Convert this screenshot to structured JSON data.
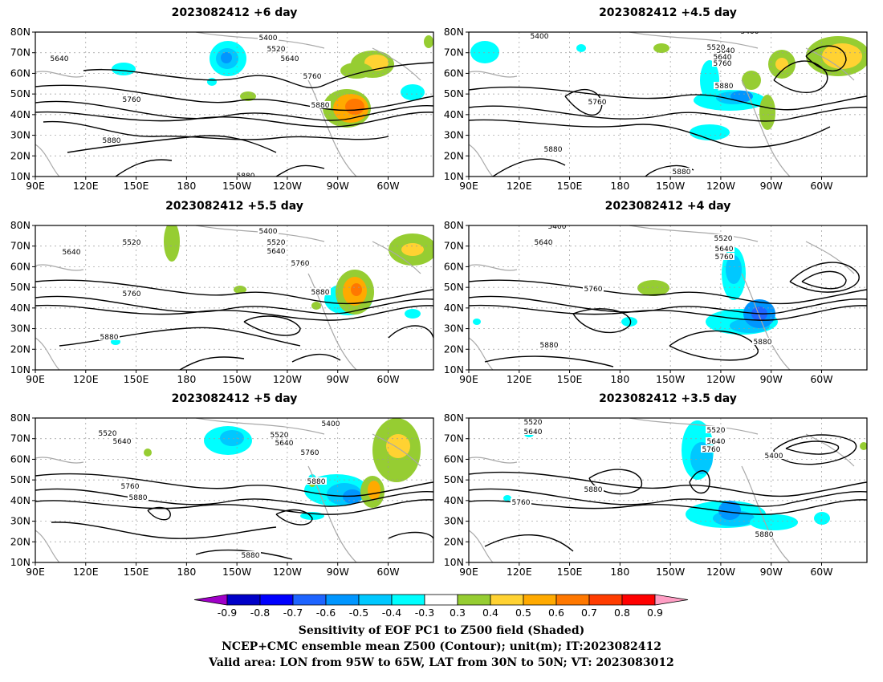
{
  "panels": [
    {
      "title": "2023082412  +6 day",
      "contour_labels": [
        "5400",
        "5520",
        "5640",
        "5640",
        "5760",
        "5760",
        "5880",
        "5880",
        "5880"
      ]
    },
    {
      "title": "2023082412  +4.5 day",
      "contour_labels": [
        "5400",
        "5640",
        "5520",
        "5640",
        "5760",
        "5760",
        "5880",
        "5880",
        "5880",
        "5400"
      ]
    },
    {
      "title": "2023082412  +5.5 day",
      "contour_labels": [
        "5400",
        "5520",
        "5520",
        "5640",
        "5640",
        "5760",
        "5760",
        "5880",
        "5880"
      ]
    },
    {
      "title": "2023082412  +4 day",
      "contour_labels": [
        "5400",
        "5640",
        "5520",
        "5640",
        "5760",
        "5760",
        "5880",
        "5880"
      ]
    },
    {
      "title": "2023082412  +5 day",
      "contour_labels": [
        "5400",
        "5520",
        "5520",
        "5640",
        "5640",
        "5760",
        "5760",
        "5880",
        "5880",
        "5880"
      ]
    },
    {
      "title": "2023082412  +3.5 day",
      "contour_labels": [
        "5520",
        "5640",
        "5520",
        "5640",
        "5760",
        "5880",
        "5760",
        "5400",
        "5880"
      ]
    }
  ],
  "map": {
    "x_ticks": [
      "90E",
      "120E",
      "150E",
      "180",
      "150W",
      "120W",
      "90W",
      "60W"
    ],
    "y_ticks": [
      "80N",
      "70N",
      "60N",
      "50N",
      "40N",
      "30N",
      "20N",
      "10N"
    ]
  },
  "colorbar": {
    "labels": [
      "-0.9",
      "-0.8",
      "-0.7",
      "-0.6",
      "-0.5",
      "-0.4",
      "-0.3",
      "0.3",
      "0.4",
      "0.5",
      "0.6",
      "0.7",
      "0.8",
      "0.9"
    ],
    "colors": [
      "#a000c8",
      "#0000c8",
      "#0000ff",
      "#1e64ff",
      "#0096ff",
      "#00c8ff",
      "#00ffff",
      "#ffffff",
      "#96cd32",
      "#ffd232",
      "#ffaa00",
      "#ff7800",
      "#ff3c00",
      "#ff0000",
      "#ff9ec4"
    ]
  },
  "footer": {
    "line1": "Sensitivity of EOF PC1 to Z500 field (Shaded)",
    "line2": "NCEP+CMC ensemble mean Z500 (Contour); unit(m); IT:2023082412",
    "line3": "Valid area: LON from 95W to 65W, LAT from 30N to 50N; VT: 2023083012"
  }
}
